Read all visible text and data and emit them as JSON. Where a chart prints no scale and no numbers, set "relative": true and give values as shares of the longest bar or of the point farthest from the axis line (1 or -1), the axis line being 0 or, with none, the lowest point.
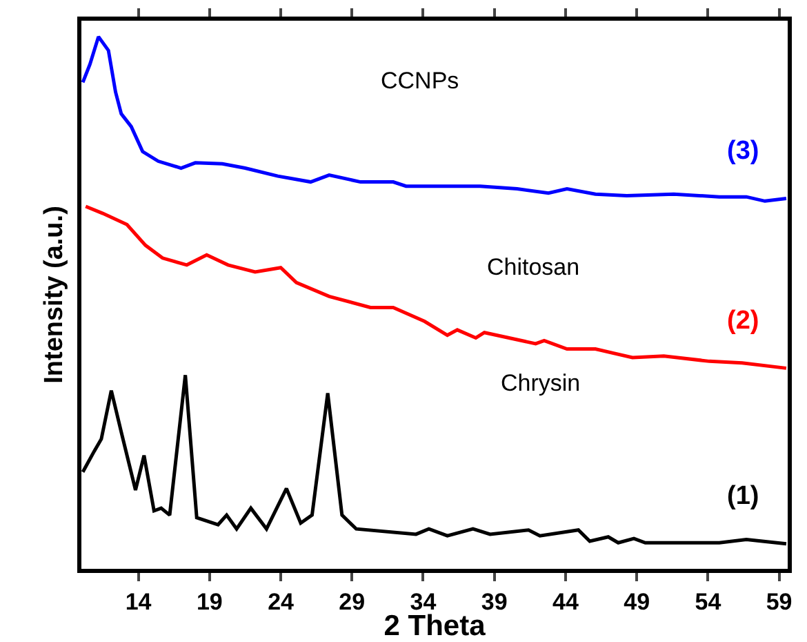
{
  "chart_data": {
    "type": "line",
    "relative": true,
    "xlabel": "2 Theta",
    "ylabel": "Intensity (a.u.)",
    "xlim": [
      10,
      59.6
    ],
    "xticks": [
      14,
      19,
      24,
      29,
      34,
      39,
      44,
      49,
      54,
      59
    ],
    "grid": false,
    "legend": false,
    "marker": "none",
    "line_style": "solid",
    "annotations": [
      "CCNPs",
      "Chitosan",
      "Chrysin"
    ],
    "series": [
      {
        "name": "(3)",
        "color": "#0000ff",
        "x": [
          10.1,
          10.6,
          11.2,
          11.9,
          12.4,
          12.8,
          13.5,
          14.3,
          15.4,
          17.0,
          18.0,
          19.9,
          21.5,
          23.8,
          26.1,
          27.4,
          29.6,
          31.9,
          32.8,
          35.4,
          38.0,
          40.6,
          42.8,
          44.1,
          46.1,
          48.3,
          51.6,
          54.8,
          56.7,
          58.0,
          59.5
        ],
        "values": [
          0.914,
          0.948,
          1.0,
          0.974,
          0.896,
          0.855,
          0.831,
          0.784,
          0.766,
          0.753,
          0.763,
          0.761,
          0.753,
          0.738,
          0.727,
          0.74,
          0.727,
          0.727,
          0.719,
          0.719,
          0.719,
          0.714,
          0.706,
          0.714,
          0.704,
          0.701,
          0.704,
          0.699,
          0.699,
          0.691,
          0.696
        ]
      },
      {
        "name": "(2)",
        "color": "#ff0000",
        "x": [
          10.3,
          11.5,
          13.2,
          14.5,
          15.7,
          17.4,
          18.8,
          20.3,
          22.2,
          24.0,
          25.1,
          27.4,
          30.3,
          31.9,
          34.1,
          35.7,
          36.4,
          37.7,
          38.3,
          41.9,
          42.5,
          44.1,
          46.1,
          48.7,
          50.9,
          54.1,
          56.4,
          59.5
        ],
        "values": [
          0.681,
          0.668,
          0.647,
          0.608,
          0.584,
          0.571,
          0.59,
          0.571,
          0.558,
          0.566,
          0.538,
          0.512,
          0.491,
          0.491,
          0.465,
          0.439,
          0.449,
          0.434,
          0.444,
          0.423,
          0.429,
          0.413,
          0.413,
          0.397,
          0.4,
          0.39,
          0.387,
          0.377
        ]
      },
      {
        "name": "(1)",
        "color": "#000000",
        "x": [
          10.1,
          10.9,
          11.4,
          12.1,
          12.8,
          13.8,
          14.4,
          15.1,
          15.6,
          16.2,
          17.3,
          18.1,
          19.6,
          20.2,
          20.9,
          21.9,
          23.0,
          24.4,
          25.4,
          26.2,
          27.3,
          28.3,
          29.3,
          33.5,
          34.4,
          35.7,
          37.5,
          38.7,
          41.4,
          42.2,
          44.9,
          45.7,
          47.0,
          47.7,
          48.8,
          49.6,
          54.8,
          56.7,
          59.5
        ],
        "values": [
          0.182,
          0.221,
          0.244,
          0.335,
          0.257,
          0.148,
          0.213,
          0.109,
          0.114,
          0.101,
          0.364,
          0.096,
          0.083,
          0.101,
          0.075,
          0.114,
          0.075,
          0.151,
          0.086,
          0.101,
          0.33,
          0.101,
          0.075,
          0.065,
          0.075,
          0.062,
          0.075,
          0.065,
          0.073,
          0.062,
          0.073,
          0.052,
          0.06,
          0.049,
          0.057,
          0.049,
          0.049,
          0.055,
          0.047
        ]
      }
    ]
  }
}
